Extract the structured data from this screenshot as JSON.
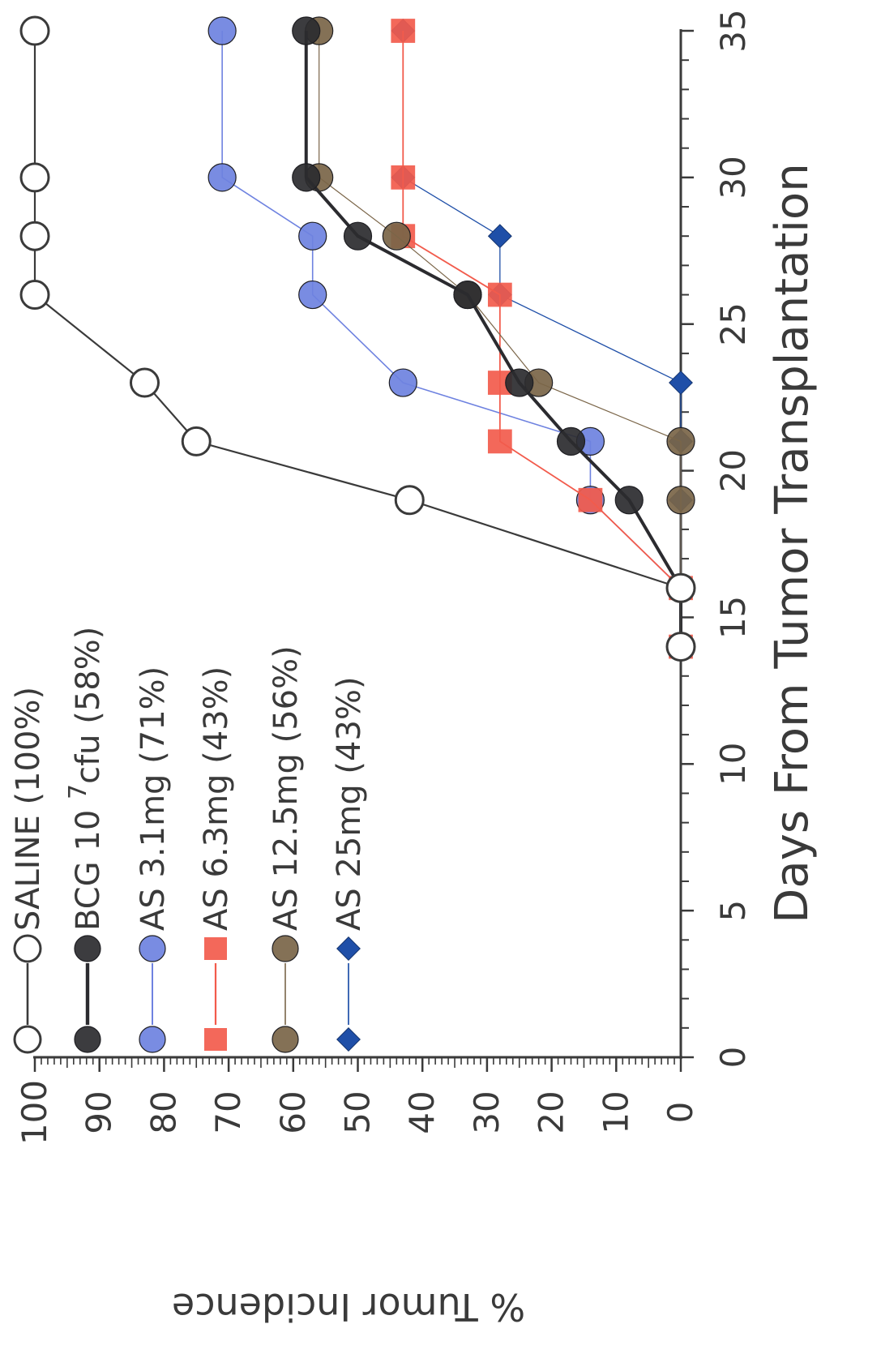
{
  "chart_data": {
    "type": "line",
    "orientation": "rotated-90-clockwise",
    "xlabel": "Days From Tumor Transplantation",
    "ylabel": "% Tumor Incidence",
    "xlim": [
      0,
      35
    ],
    "ylim": [
      0,
      100
    ],
    "x_ticks": [
      "0",
      "5",
      "10",
      "15",
      "20",
      "25",
      "30",
      "35"
    ],
    "y_ticks": [
      "0",
      "10",
      "20",
      "30",
      "40",
      "50",
      "60",
      "70",
      "80",
      "90",
      "100"
    ],
    "grid": false,
    "legend_position": "top-left",
    "series": [
      {
        "name": "SALINE (100%)",
        "marker": "open-circle",
        "color": "#3a3a3a",
        "points": [
          [
            14,
            0
          ],
          [
            16,
            0
          ],
          [
            19,
            42
          ],
          [
            21,
            75
          ],
          [
            23,
            83
          ],
          [
            26,
            100
          ],
          [
            28,
            100
          ],
          [
            30,
            100
          ],
          [
            35,
            100
          ]
        ]
      },
      {
        "name": "BCG 10^7 cfu (58%)",
        "label_main": "BCG 10",
        "label_sup": "7",
        "label_tail": "cfu (58%)",
        "marker": "circle",
        "color": "#2b2b2f",
        "points": [
          [
            14,
            0
          ],
          [
            16,
            0
          ],
          [
            19,
            8
          ],
          [
            21,
            17
          ],
          [
            23,
            25
          ],
          [
            26,
            33
          ],
          [
            28,
            50
          ],
          [
            30,
            58
          ],
          [
            35,
            58
          ]
        ]
      },
      {
        "name": "AS 3.1mg (71%)",
        "marker": "circle",
        "color": "#6e82e0",
        "points": [
          [
            14,
            0
          ],
          [
            16,
            0
          ],
          [
            19,
            14
          ],
          [
            21,
            14
          ],
          [
            23,
            43
          ],
          [
            26,
            57
          ],
          [
            28,
            57
          ],
          [
            30,
            71
          ],
          [
            35,
            71
          ]
        ]
      },
      {
        "name": "AS 6.3mg (43%)",
        "marker": "square",
        "color": "#f25b4c",
        "points": [
          [
            14,
            0
          ],
          [
            16,
            0
          ],
          [
            19,
            14
          ],
          [
            21,
            28
          ],
          [
            23,
            28
          ],
          [
            26,
            28
          ],
          [
            28,
            43
          ],
          [
            30,
            43
          ],
          [
            35,
            43
          ]
        ]
      },
      {
        "name": "AS 12.5mg (56%)",
        "marker": "circle",
        "color": "#7a6548",
        "points": [
          [
            14,
            0
          ],
          [
            16,
            0
          ],
          [
            19,
            0
          ],
          [
            21,
            0
          ],
          [
            23,
            22
          ],
          [
            26,
            33
          ],
          [
            28,
            44
          ],
          [
            30,
            56
          ],
          [
            35,
            56
          ]
        ]
      },
      {
        "name": "AS 25mg (43%)",
        "marker": "diamond",
        "color": "#1f4fa8",
        "points": [
          [
            14,
            0
          ],
          [
            16,
            0
          ],
          [
            19,
            0
          ],
          [
            21,
            0
          ],
          [
            23,
            0
          ],
          [
            26,
            28
          ],
          [
            28,
            28
          ],
          [
            30,
            43
          ],
          [
            35,
            43
          ]
        ]
      }
    ]
  }
}
